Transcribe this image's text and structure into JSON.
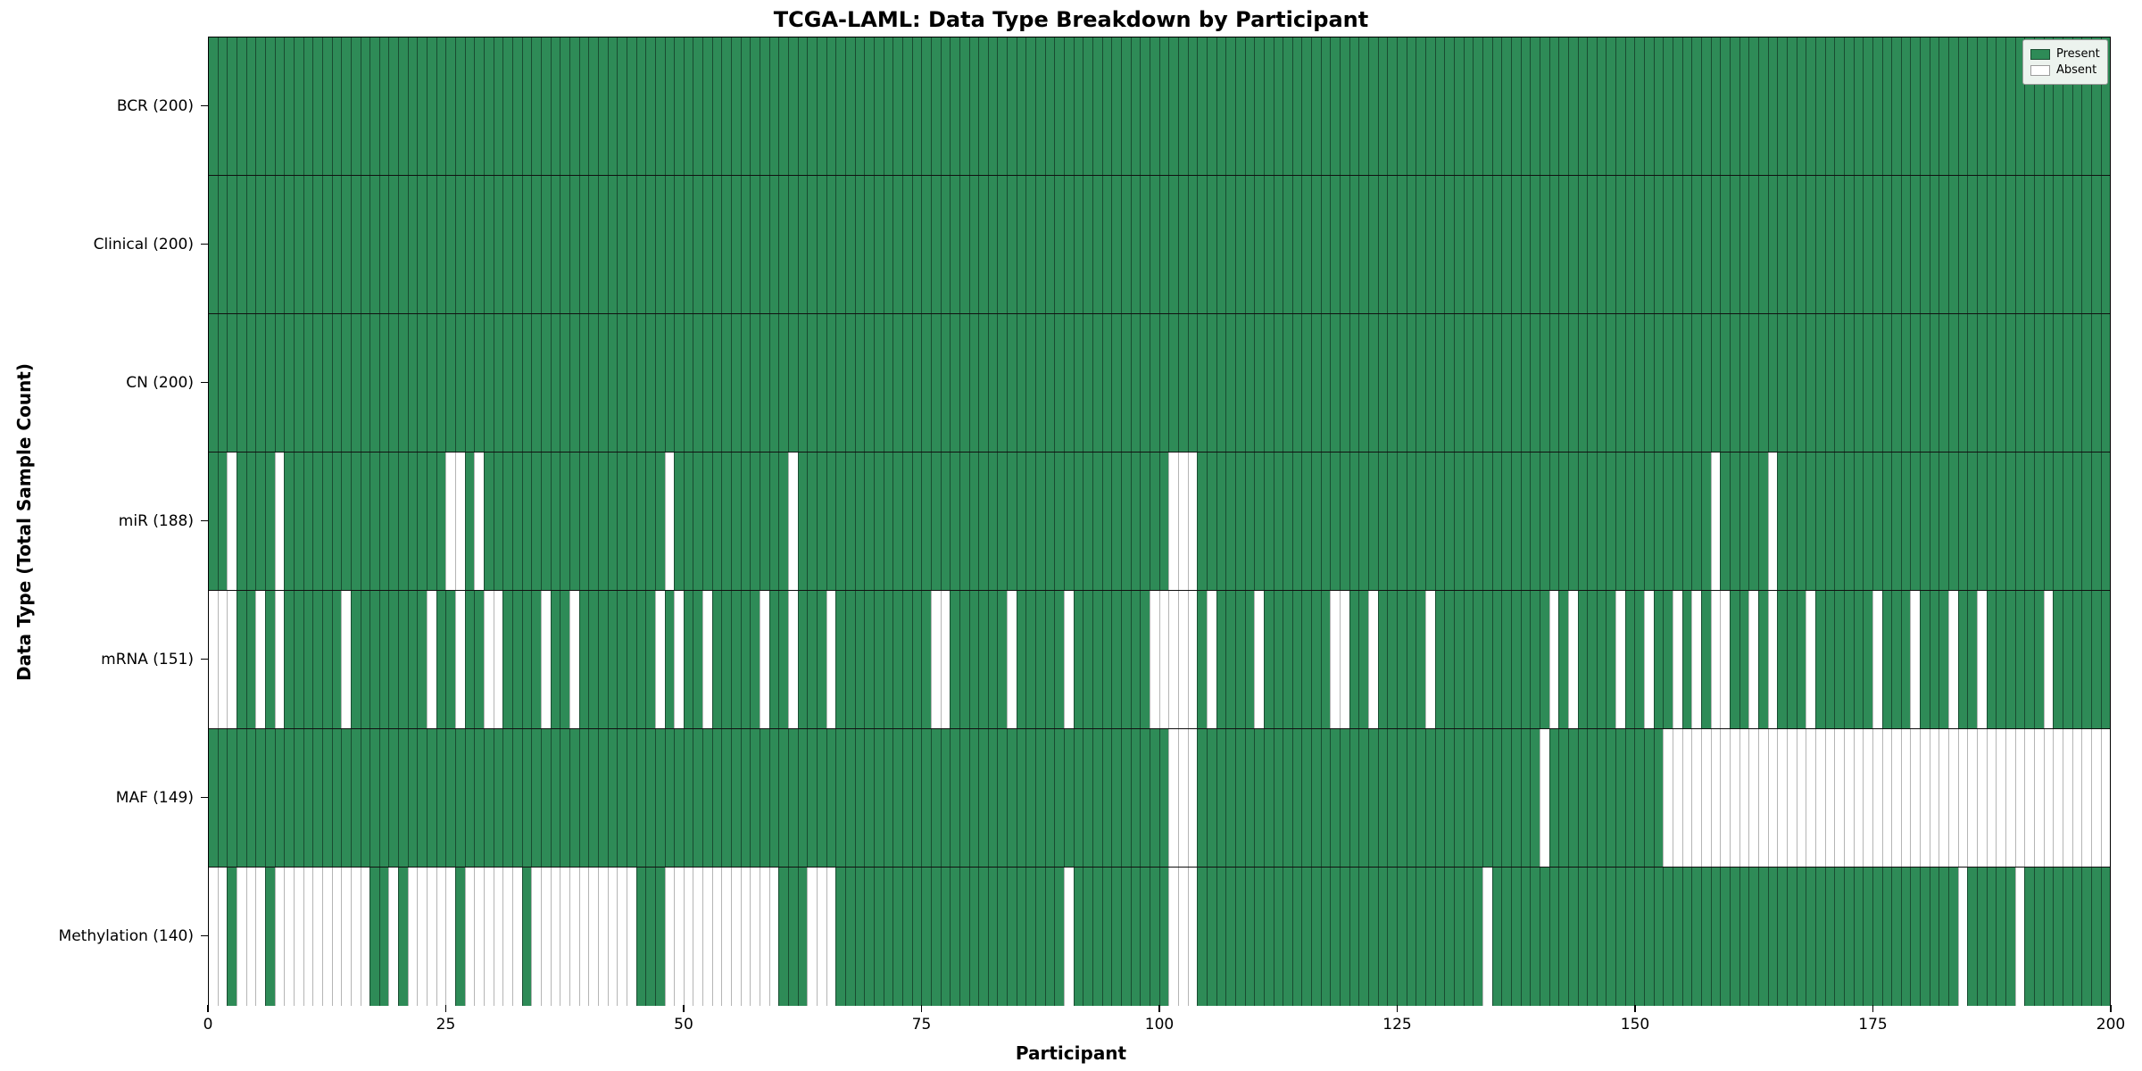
{
  "chart_data": {
    "type": "heatmap",
    "title": "TCGA-LAML: Data Type Breakdown by Participant",
    "xlabel": "Participant",
    "ylabel": "Data Type (Total Sample Count)",
    "x_ticks": [
      0,
      25,
      50,
      75,
      100,
      125,
      150,
      175,
      200
    ],
    "x_range": [
      0,
      200
    ],
    "n_participants": 200,
    "grid": false,
    "legend_position": "upper right",
    "legend": {
      "present_label": "Present",
      "absent_label": "Absent"
    },
    "colors": {
      "present": "#2e8b57",
      "absent": "#ffffff"
    },
    "rows": [
      {
        "name": "BCR",
        "label": "BCR (200)",
        "total_samples": 200,
        "absent_participants": []
      },
      {
        "name": "Clinical",
        "label": "Clinical (200)",
        "total_samples": 200,
        "absent_participants": []
      },
      {
        "name": "CN",
        "label": "CN (200)",
        "total_samples": 200,
        "absent_participants": []
      },
      {
        "name": "miR",
        "label": "miR (188)",
        "total_samples": 188,
        "absent_participants": [
          2,
          7,
          25,
          26,
          28,
          48,
          61,
          101,
          102,
          103,
          158,
          164
        ]
      },
      {
        "name": "mRNA",
        "label": "mRNA (151)",
        "total_samples": 151,
        "absent_participants": [
          0,
          1,
          2,
          5,
          7,
          14,
          23,
          26,
          29,
          30,
          35,
          38,
          47,
          49,
          52,
          58,
          61,
          65,
          76,
          77,
          84,
          90,
          99,
          100,
          101,
          102,
          103,
          105,
          110,
          118,
          119,
          122,
          128,
          141,
          143,
          148,
          151,
          154,
          156,
          158,
          159,
          162,
          164,
          168,
          175,
          179,
          183,
          186,
          193
        ]
      },
      {
        "name": "MAF",
        "label": "MAF (149)",
        "total_samples": 149,
        "absent_participants": [
          101,
          102,
          103,
          140,
          153,
          154,
          155,
          156,
          157,
          158,
          159,
          160,
          161,
          162,
          163,
          164,
          165,
          166,
          167,
          168,
          169,
          170,
          171,
          172,
          173,
          174,
          175,
          176,
          177,
          178,
          179,
          180,
          181,
          182,
          183,
          184,
          185,
          186,
          187,
          188,
          189,
          190,
          191,
          192,
          193,
          194,
          195,
          196,
          197,
          198,
          199
        ]
      },
      {
        "name": "Methylation",
        "label": "Methylation (140)",
        "total_samples": 140,
        "absent_participants": [
          0,
          1,
          3,
          4,
          5,
          7,
          8,
          9,
          10,
          11,
          12,
          13,
          14,
          15,
          16,
          19,
          21,
          22,
          23,
          24,
          25,
          27,
          28,
          29,
          30,
          31,
          32,
          34,
          35,
          36,
          37,
          38,
          39,
          40,
          41,
          42,
          43,
          44,
          48,
          49,
          50,
          51,
          52,
          53,
          54,
          55,
          56,
          57,
          58,
          59,
          63,
          64,
          65,
          90,
          101,
          102,
          103,
          134,
          184,
          190
        ]
      }
    ]
  }
}
